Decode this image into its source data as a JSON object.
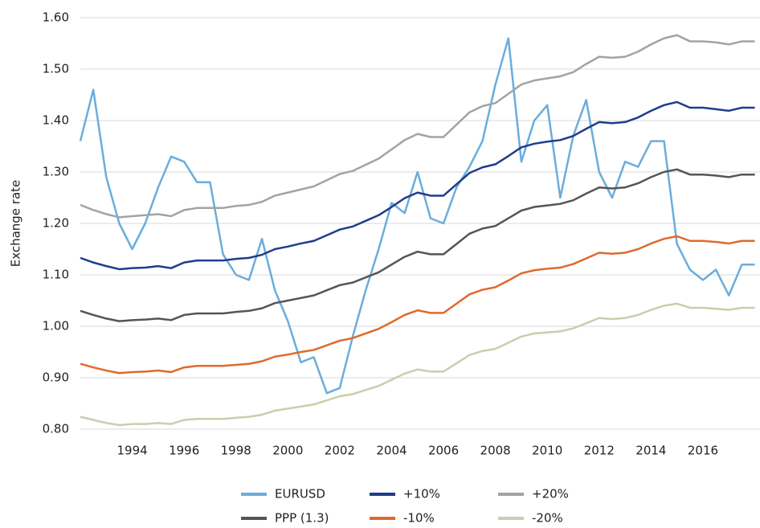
{
  "chart_data": {
    "type": "line",
    "y_label": "Exchange rate",
    "x": [
      1992.0,
      1992.5,
      1993.0,
      1993.5,
      1994.0,
      1994.5,
      1995.0,
      1995.5,
      1996.0,
      1996.5,
      1997.0,
      1997.5,
      1998.0,
      1998.5,
      1999.0,
      1999.5,
      2000.0,
      2000.5,
      2001.0,
      2001.5,
      2002.0,
      2002.5,
      2003.0,
      2003.5,
      2004.0,
      2004.5,
      2005.0,
      2005.5,
      2006.0,
      2006.5,
      2007.0,
      2007.5,
      2008.0,
      2008.5,
      2009.0,
      2009.5,
      2010.0,
      2010.5,
      2011.0,
      2011.5,
      2012.0,
      2012.5,
      2013.0,
      2013.5,
      2014.0,
      2014.5,
      2015.0,
      2015.5,
      2016.0,
      2016.5,
      2017.0,
      2017.5,
      2018.0
    ],
    "xlim": [
      1992,
      2018.2
    ],
    "xticks": [
      1994,
      1996,
      1998,
      2000,
      2002,
      2004,
      2006,
      2008,
      2010,
      2012,
      2014,
      2016
    ],
    "ylim": [
      0.8,
      1.6
    ],
    "yticks": [
      {
        "value": 0.8,
        "label": "0.80"
      },
      {
        "value": 0.9,
        "label": "0.90"
      },
      {
        "value": 1.0,
        "label": "1.00"
      },
      {
        "value": 1.1,
        "label": "1.10"
      },
      {
        "value": 1.2,
        "label": "1.20"
      },
      {
        "value": 1.3,
        "label": "1.30"
      },
      {
        "value": 1.4,
        "label": "1.40"
      },
      {
        "value": 1.5,
        "label": "1.50"
      },
      {
        "value": 1.6,
        "label": "1.60"
      }
    ],
    "grid": true,
    "legend": "bottom",
    "series": [
      {
        "name": "EURUSD",
        "color": "#6aaddc",
        "values": [
          1.36,
          1.46,
          1.29,
          1.2,
          1.15,
          1.2,
          1.27,
          1.33,
          1.32,
          1.28,
          1.28,
          1.14,
          1.1,
          1.09,
          1.17,
          1.07,
          1.01,
          0.93,
          0.94,
          0.87,
          0.88,
          0.98,
          1.07,
          1.15,
          1.24,
          1.22,
          1.3,
          1.21,
          1.2,
          1.27,
          1.31,
          1.36,
          1.47,
          1.56,
          1.32,
          1.4,
          1.43,
          1.25,
          1.37,
          1.44,
          1.3,
          1.25,
          1.32,
          1.31,
          1.36,
          1.36,
          1.16,
          1.11,
          1.09,
          1.11,
          1.06,
          1.12,
          1.12
        ]
      },
      {
        "name": "+10%",
        "color": "#1f3d8c",
        "values": [
          1.133,
          1.124,
          1.117,
          1.111,
          1.113,
          1.114,
          1.117,
          1.113,
          1.124,
          1.128,
          1.128,
          1.128,
          1.131,
          1.133,
          1.139,
          1.15,
          1.155,
          1.161,
          1.166,
          1.177,
          1.188,
          1.194,
          1.205,
          1.216,
          1.232,
          1.249,
          1.26,
          1.254,
          1.254,
          1.276,
          1.298,
          1.309,
          1.315,
          1.331,
          1.348,
          1.355,
          1.359,
          1.362,
          1.37,
          1.384,
          1.397,
          1.395,
          1.397,
          1.406,
          1.419,
          1.43,
          1.436,
          1.425,
          1.425,
          1.422,
          1.419,
          1.425,
          1.425
        ]
      },
      {
        "name": "+20%",
        "color": "#a3a3a3",
        "values": [
          1.236,
          1.226,
          1.218,
          1.212,
          1.214,
          1.216,
          1.218,
          1.214,
          1.226,
          1.23,
          1.23,
          1.23,
          1.234,
          1.236,
          1.242,
          1.254,
          1.26,
          1.266,
          1.272,
          1.284,
          1.296,
          1.302,
          1.314,
          1.326,
          1.344,
          1.362,
          1.374,
          1.368,
          1.368,
          1.392,
          1.416,
          1.428,
          1.434,
          1.452,
          1.47,
          1.478,
          1.482,
          1.486,
          1.494,
          1.51,
          1.524,
          1.522,
          1.524,
          1.534,
          1.548,
          1.56,
          1.566,
          1.554,
          1.554,
          1.552,
          1.548,
          1.554,
          1.554
        ]
      },
      {
        "name": "PPP (1.3)",
        "color": "#555555",
        "values": [
          1.03,
          1.022,
          1.015,
          1.01,
          1.012,
          1.013,
          1.015,
          1.012,
          1.022,
          1.025,
          1.025,
          1.025,
          1.028,
          1.03,
          1.035,
          1.045,
          1.05,
          1.055,
          1.06,
          1.07,
          1.08,
          1.085,
          1.095,
          1.105,
          1.12,
          1.135,
          1.145,
          1.14,
          1.14,
          1.16,
          1.18,
          1.19,
          1.195,
          1.21,
          1.225,
          1.232,
          1.235,
          1.238,
          1.245,
          1.258,
          1.27,
          1.268,
          1.27,
          1.278,
          1.29,
          1.3,
          1.305,
          1.295,
          1.295,
          1.293,
          1.29,
          1.295,
          1.295
        ]
      },
      {
        "name": "-10%",
        "color": "#e06a2b",
        "values": [
          0.927,
          0.92,
          0.914,
          0.909,
          0.911,
          0.912,
          0.914,
          0.911,
          0.92,
          0.923,
          0.923,
          0.923,
          0.925,
          0.927,
          0.932,
          0.941,
          0.945,
          0.95,
          0.954,
          0.963,
          0.972,
          0.977,
          0.986,
          0.995,
          1.008,
          1.022,
          1.031,
          1.026,
          1.026,
          1.044,
          1.062,
          1.071,
          1.076,
          1.089,
          1.103,
          1.109,
          1.112,
          1.114,
          1.121,
          1.132,
          1.143,
          1.141,
          1.143,
          1.15,
          1.161,
          1.17,
          1.175,
          1.166,
          1.166,
          1.164,
          1.161,
          1.166,
          1.166
        ]
      },
      {
        "name": "-20%",
        "color": "#c9cfab",
        "values": [
          0.824,
          0.818,
          0.812,
          0.808,
          0.81,
          0.81,
          0.812,
          0.81,
          0.818,
          0.82,
          0.82,
          0.82,
          0.822,
          0.824,
          0.828,
          0.836,
          0.84,
          0.844,
          0.848,
          0.856,
          0.864,
          0.868,
          0.876,
          0.884,
          0.896,
          0.908,
          0.916,
          0.912,
          0.912,
          0.928,
          0.944,
          0.952,
          0.956,
          0.968,
          0.98,
          0.986,
          0.988,
          0.99,
          0.996,
          1.006,
          1.016,
          1.014,
          1.016,
          1.022,
          1.032,
          1.04,
          1.044,
          1.036,
          1.036,
          1.034,
          1.032,
          1.036,
          1.036
        ]
      }
    ]
  }
}
